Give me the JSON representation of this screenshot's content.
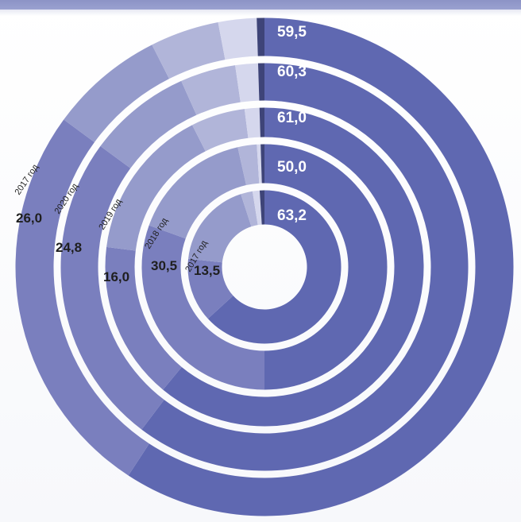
{
  "chart_data": {
    "type": "pie",
    "variant": "multi-ring donut",
    "colors": [
      "#5f68b1",
      "#7a7fbe",
      "#959bcb",
      "#b1b5d9",
      "#d5d7ed",
      "#3e4478"
    ],
    "rings": [
      {
        "year_label": "2017 год",
        "right_label": "59,5",
        "left_label": "26,0",
        "segments": [
          59.5,
          26.0,
          7.5,
          4.5,
          2.5,
          0.5
        ]
      },
      {
        "year_label": "2020 год",
        "right_label": "60,3",
        "left_label": "24,8",
        "segments": [
          60.3,
          24.8,
          8.2,
          4.4,
          1.8,
          0.5
        ]
      },
      {
        "year_label": "2019 год",
        "right_label": "61,0",
        "left_label": "16,0",
        "segments": [
          61.0,
          16.0,
          15.5,
          5.5,
          1.5,
          0.5
        ]
      },
      {
        "year_label": "2018 год",
        "right_label": "50,0",
        "left_label": "30,5",
        "segments": [
          50.0,
          30.5,
          16.0,
          2.5,
          0.5,
          0.5
        ]
      },
      {
        "year_label": "2017 год",
        "right_label": "63,2",
        "left_label": "13,5",
        "segments": [
          63.2,
          13.5,
          18.3,
          2.5,
          1.5,
          1.0
        ]
      }
    ]
  }
}
